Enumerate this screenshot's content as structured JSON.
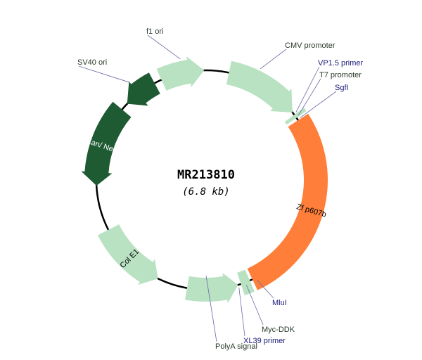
{
  "title": "MR213810",
  "size": "(6.8 kb)",
  "colors": {
    "light_green": "#b9e2c2",
    "dark_green": "#1e5a32",
    "orange": "#ff7f3a",
    "navy": "#1a1a7a",
    "dark": "#2a3a2a"
  },
  "features": [
    {
      "name": "CMV promoter",
      "color": "light_green",
      "label": ""
    },
    {
      "name": "Zf p607b",
      "color": "orange",
      "label": "Zf p607b"
    },
    {
      "name": "PolyA signal",
      "color": "light_green",
      "label": ""
    },
    {
      "name": "Col E1",
      "color": "light_green",
      "label": "Col E1"
    },
    {
      "name": "Kan/ Neo",
      "color": "dark_green",
      "label": "Kan/ Neo"
    },
    {
      "name": "SV40 ori",
      "color": "dark_green",
      "label": ""
    },
    {
      "name": "f1 ori",
      "color": "light_green",
      "label": ""
    }
  ],
  "annotations": [
    {
      "text": "f1 ori",
      "color": "dark"
    },
    {
      "text": "SV40 ori",
      "color": "dark"
    },
    {
      "text": "CMV promoter",
      "color": "dark"
    },
    {
      "text": "VP1.5 primer",
      "color": "navy"
    },
    {
      "text": "T7 promoter",
      "color": "dark"
    },
    {
      "text": "SgfI",
      "color": "navy"
    },
    {
      "text": "MluI",
      "color": "navy"
    },
    {
      "text": "Myc-DDK",
      "color": "dark"
    },
    {
      "text": "XL39 primer",
      "color": "navy"
    },
    {
      "text": "PolyA signal",
      "color": "dark"
    }
  ]
}
